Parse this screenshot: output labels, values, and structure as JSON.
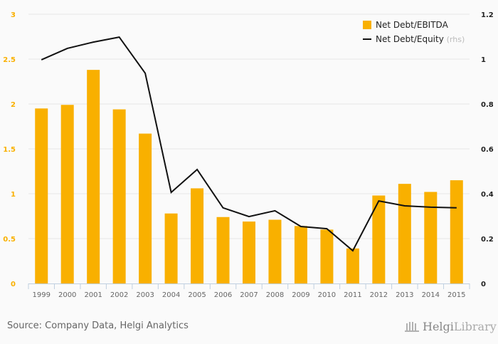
{
  "chart_data": {
    "type": "bar+line",
    "categories": [
      "1999",
      "2000",
      "2001",
      "2002",
      "2003",
      "2004",
      "2005",
      "2006",
      "2007",
      "2008",
      "2009",
      "2010",
      "2011",
      "2012",
      "2013",
      "2014",
      "2015"
    ],
    "series": [
      {
        "name": "Net Debt/EBITDA",
        "type": "bar",
        "axis": "left",
        "color": "#f9b000",
        "values": [
          1.95,
          1.99,
          2.38,
          1.94,
          1.67,
          0.78,
          1.06,
          0.74,
          0.69,
          0.71,
          0.64,
          0.6,
          0.39,
          0.98,
          1.11,
          1.02,
          1.15
        ]
      },
      {
        "name": "Net Debt/Equity",
        "suffix": "(rhs)",
        "type": "line",
        "axis": "right",
        "color": "#111111",
        "values": [
          0.997,
          1.048,
          1.076,
          1.098,
          0.937,
          0.406,
          0.508,
          0.337,
          0.298,
          0.324,
          0.254,
          0.244,
          0.146,
          0.368,
          0.346,
          0.34,
          0.337
        ]
      }
    ],
    "left_axis": {
      "ylim": [
        0,
        3
      ],
      "ticks": [
        "0",
        "0.5",
        "1",
        "1.5",
        "2",
        "2.5",
        "3"
      ],
      "tick_values": [
        0,
        0.5,
        1,
        1.5,
        2,
        2.5,
        3
      ]
    },
    "right_axis": {
      "ylim": [
        0,
        1.2
      ],
      "ticks": [
        "0",
        "0.2",
        "0.4",
        "0.6",
        "0.8",
        "1",
        "1.2"
      ],
      "tick_values": [
        0,
        0.2,
        0.4,
        0.6,
        0.8,
        1,
        1.2
      ]
    },
    "grid": true,
    "legend_position": "top-right",
    "title": "",
    "xlabel": "",
    "ylabel": ""
  },
  "footer": {
    "source": "Source: Company Data, Helgi Analytics",
    "logo_text": "HelgiLibrary"
  }
}
